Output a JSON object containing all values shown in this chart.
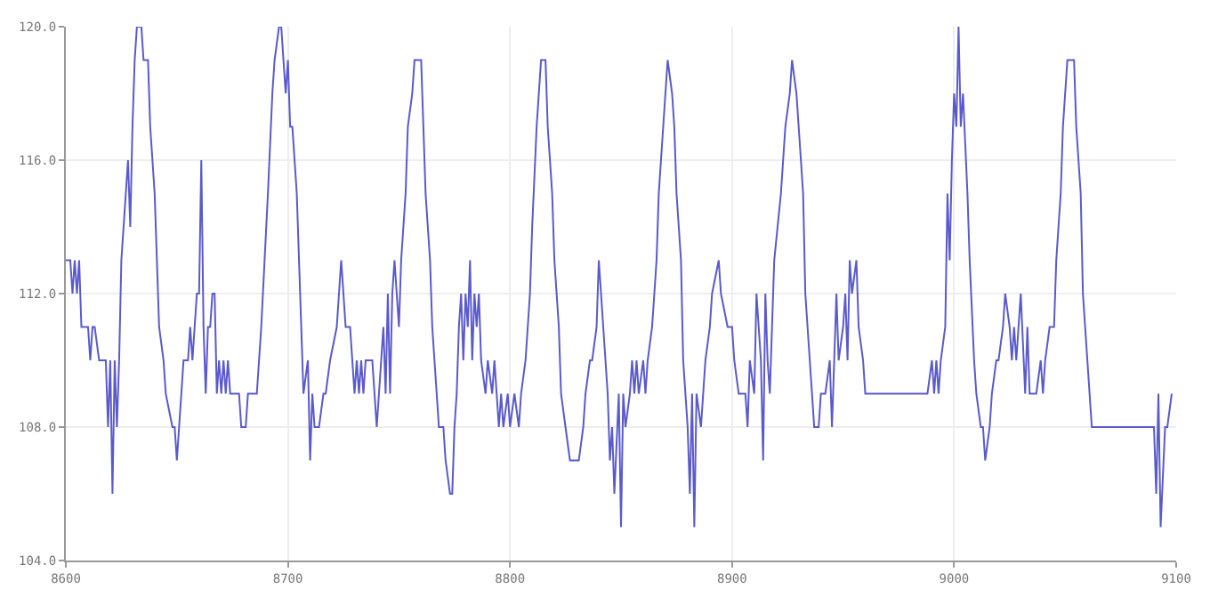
{
  "chart_data": {
    "type": "line",
    "x": [
      8600,
      8602,
      8603,
      8604,
      8605,
      8606,
      8607,
      8610,
      8611,
      8612,
      8613,
      8615,
      8618,
      8619,
      8620,
      8621,
      8622,
      8623,
      8624,
      8625,
      8627,
      8628,
      8629,
      8630,
      8631,
      8632,
      8634,
      8635,
      8637,
      8638,
      8640,
      8641,
      8642,
      8644,
      8645,
      8648,
      8649,
      8650,
      8651,
      8652,
      8653,
      8655,
      8656,
      8657,
      8658,
      8659,
      8660,
      8661,
      8662,
      8663,
      8664,
      8665,
      8666,
      8667,
      8668,
      8669,
      8670,
      8671,
      8672,
      8673,
      8674,
      8678,
      8679,
      8681,
      8682,
      8686,
      8688,
      8691,
      8693,
      8694,
      8696,
      8697,
      8698,
      8699,
      8700,
      8701,
      8702,
      8704,
      8705,
      8706,
      8707,
      8709,
      8710,
      8711,
      8712,
      8714,
      8716,
      8717,
      8719,
      8722,
      8723,
      8724,
      8726,
      8728,
      8729,
      8730,
      8731,
      8732,
      8733,
      8734,
      8735,
      8737,
      8738,
      8740,
      8742,
      8743,
      8744,
      8745,
      8746,
      8747,
      8748,
      8750,
      8751,
      8753,
      8754,
      8756,
      8757,
      8758,
      8760,
      8761,
      8762,
      8764,
      8765,
      8767,
      8768,
      8770,
      8771,
      8773,
      8774,
      8775,
      8776,
      8777,
      8778,
      8779,
      8780,
      8781,
      8782,
      8783,
      8784,
      8785,
      8786,
      8787,
      8789,
      8790,
      8792,
      8793,
      8794,
      8795,
      8796,
      8797,
      8799,
      8800,
      8802,
      8804,
      8805,
      8807,
      8809,
      8810,
      8812,
      8813,
      8814,
      8816,
      8817,
      8819,
      8820,
      8822,
      8823,
      8825,
      8827,
      8831,
      8833,
      8834,
      8836,
      8837,
      8839,
      8840,
      8842,
      8844,
      8845,
      8846,
      8847,
      8849,
      8850,
      8851,
      8852,
      8854,
      8855,
      8856,
      8857,
      8858,
      8860,
      8861,
      8862,
      8864,
      8866,
      8867,
      8869,
      8870,
      8871,
      8873,
      8874,
      8875,
      8877,
      8878,
      8880,
      8881,
      8882,
      8883,
      8884,
      8886,
      8888,
      8890,
      8891,
      8894,
      8895,
      8898,
      8900,
      8901,
      8903,
      8906,
      8907,
      8908,
      8910,
      8911,
      8913,
      8914,
      8915,
      8916,
      8917,
      8919,
      8922,
      8924,
      8926,
      8927,
      8929,
      8930,
      8932,
      8933,
      8935,
      8936,
      8937,
      8939,
      8940,
      8942,
      8944,
      8945,
      8947,
      8948,
      8950,
      8951,
      8952,
      8953,
      8954,
      8956,
      8957,
      8959,
      8960,
      8965,
      8975,
      8988,
      8990,
      8991,
      8992,
      8993,
      8994,
      8996,
      8997,
      8998,
      8999,
      9000,
      9001,
      9002,
      9003,
      9004,
      9006,
      9007,
      9009,
      9010,
      9012,
      9013,
      9014,
      9016,
      9017,
      9019,
      9020,
      9022,
      9023,
      9025,
      9026,
      9027,
      9028,
      9029,
      9030,
      9032,
      9033,
      9034,
      9036,
      9037,
      9039,
      9040,
      9041,
      9043,
      9045,
      9046,
      9048,
      9049,
      9051,
      9052,
      9054,
      9055,
      9057,
      9058,
      9060,
      9062,
      9090,
      9091,
      9092,
      9093,
      9095,
      9096,
      9098
    ],
    "series": [
      {
        "color": "#5a5acc",
        "values": [
          113,
          113,
          112,
          113,
          112,
          113,
          111,
          111,
          110,
          111,
          111,
          110,
          110,
          108,
          110,
          106,
          110,
          108,
          110,
          113,
          115,
          116,
          114,
          117,
          119,
          120,
          120,
          119,
          119,
          117,
          115,
          113,
          111,
          110,
          109,
          108,
          108,
          107,
          108,
          109,
          110,
          110,
          111,
          110,
          111,
          112,
          112,
          116,
          111,
          109,
          111,
          111,
          112,
          112,
          109,
          110,
          109,
          110,
          109,
          110,
          109,
          109,
          108,
          108,
          109,
          109,
          111,
          115,
          118,
          119,
          120,
          120,
          119,
          118,
          119,
          117,
          117,
          115,
          113,
          111,
          109,
          110,
          107,
          109,
          108,
          108,
          109,
          109,
          110,
          111,
          112,
          113,
          111,
          111,
          110,
          109,
          110,
          109,
          110,
          109,
          110,
          110,
          110,
          108,
          110,
          111,
          109,
          112,
          109,
          112,
          113,
          111,
          113,
          115,
          117,
          118,
          119,
          119,
          119,
          117,
          115,
          113,
          111,
          109,
          108,
          108,
          107,
          106,
          106,
          108,
          109,
          111,
          112,
          110,
          112,
          111,
          113,
          110,
          112,
          111,
          112,
          110,
          109,
          110,
          109,
          110,
          109,
          108,
          109,
          108,
          109,
          108,
          109,
          108,
          109,
          110,
          112,
          114,
          117,
          118,
          119,
          119,
          117,
          115,
          113,
          111,
          109,
          108,
          107,
          107,
          108,
          109,
          110,
          110,
          111,
          113,
          111,
          109,
          107,
          108,
          106,
          109,
          105,
          109,
          108,
          109,
          110,
          109,
          110,
          109,
          110,
          109,
          110,
          111,
          113,
          115,
          117,
          118,
          119,
          118,
          117,
          115,
          113,
          110,
          108,
          106,
          109,
          105,
          109,
          108,
          110,
          111,
          112,
          113,
          112,
          111,
          111,
          110,
          109,
          109,
          108,
          110,
          109,
          112,
          110,
          107,
          112,
          110,
          109,
          113,
          115,
          117,
          118,
          119,
          118,
          117,
          115,
          112,
          110,
          109,
          108,
          108,
          109,
          109,
          110,
          108,
          112,
          110,
          111,
          112,
          110,
          113,
          112,
          113,
          111,
          110,
          109,
          109,
          109,
          109,
          110,
          109,
          110,
          109,
          110,
          111,
          115,
          113,
          116,
          118,
          117,
          120,
          117,
          118,
          115,
          113,
          110,
          109,
          108,
          108,
          107,
          108,
          109,
          110,
          110,
          111,
          112,
          111,
          110,
          111,
          110,
          111,
          112,
          109,
          111,
          109,
          109,
          109,
          110,
          109,
          110,
          111,
          111,
          113,
          115,
          117,
          119,
          119,
          119,
          117,
          115,
          112,
          110,
          108,
          108,
          106,
          109,
          105,
          108,
          108,
          109
        ]
      }
    ],
    "xlim": [
      8600,
      9100
    ],
    "xticks": [
      8600,
      8700,
      8800,
      8900,
      9000,
      9100
    ],
    "ylim": [
      104,
      120
    ],
    "yticks": [
      {
        "value": 104,
        "label": "104.0"
      },
      {
        "value": 108,
        "label": "108.0"
      },
      {
        "value": 112,
        "label": "112.0"
      },
      {
        "value": 116,
        "label": "116.0"
      },
      {
        "value": 120,
        "label": "120.0"
      }
    ],
    "grid": true,
    "marker": "none",
    "line_style": "solid"
  }
}
